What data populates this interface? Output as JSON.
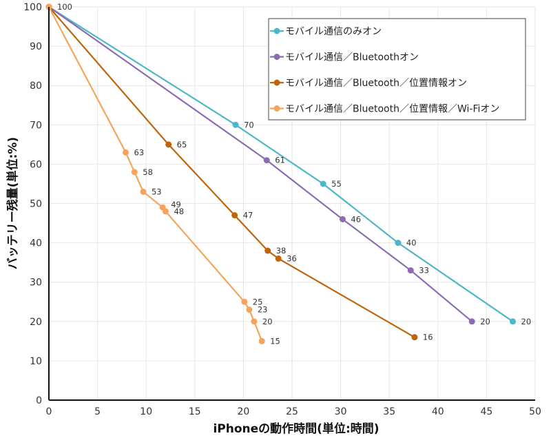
{
  "chart_data": {
    "type": "line",
    "xlabel": "iPhoneの動作時間(単位:時間)",
    "ylabel": "バッテリー残量(単位:%)",
    "xlim": [
      0,
      50
    ],
    "ylim": [
      0,
      100
    ],
    "xticks": [
      0,
      5,
      10,
      15,
      20,
      25,
      30,
      35,
      40,
      45,
      50
    ],
    "yticks": [
      0,
      10,
      20,
      30,
      40,
      50,
      60,
      70,
      80,
      90,
      100
    ],
    "grid": true,
    "legend_placement": "top-right",
    "series": [
      {
        "name": "モバイル通信のみオン",
        "color": "#4db6c9",
        "points": [
          [
            0,
            100
          ],
          [
            19.2,
            70
          ],
          [
            28.2,
            55
          ],
          [
            35.9,
            40
          ],
          [
            47.7,
            20
          ]
        ]
      },
      {
        "name": "モバイル通信／Bluetoothオン",
        "color": "#8b6bb3",
        "points": [
          [
            0,
            100
          ],
          [
            22.4,
            61
          ],
          [
            30.2,
            46
          ],
          [
            37.2,
            33
          ],
          [
            43.5,
            20
          ]
        ]
      },
      {
        "name": "モバイル通信／Bluetooth／位置情報オン",
        "color": "#c0640c",
        "points": [
          [
            0,
            100
          ],
          [
            12.3,
            65
          ],
          [
            19.1,
            47
          ],
          [
            22.5,
            38
          ],
          [
            23.6,
            36
          ],
          [
            37.6,
            16
          ]
        ]
      },
      {
        "name": "モバイル通信／Bluetooth／位置情報／Wi-Fiオン",
        "color": "#f5a55b",
        "points": [
          [
            0,
            100
          ],
          [
            7.9,
            63
          ],
          [
            8.8,
            58
          ],
          [
            9.7,
            53
          ],
          [
            11.7,
            49
          ],
          [
            12.0,
            48
          ],
          [
            20.1,
            25
          ],
          [
            20.6,
            23
          ],
          [
            21.1,
            20
          ],
          [
            21.9,
            15
          ]
        ]
      }
    ]
  }
}
